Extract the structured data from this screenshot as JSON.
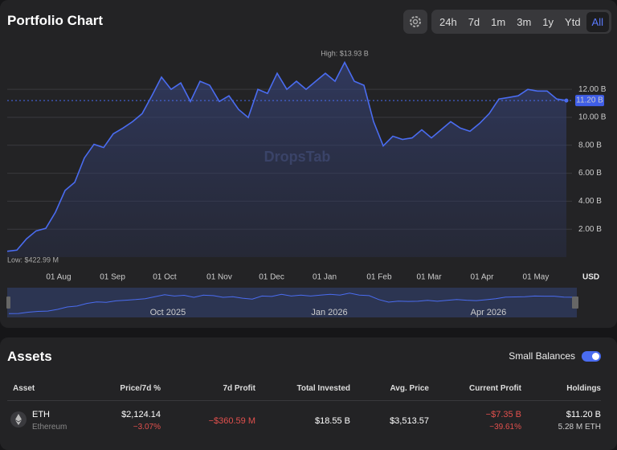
{
  "header": {
    "title": "Portfolio Chart",
    "ranges": [
      "24h",
      "7d",
      "1m",
      "3m",
      "1y",
      "Ytd",
      "All"
    ],
    "active_range": 6
  },
  "chart_data": {
    "type": "line",
    "color": "#4a6cf0",
    "watermark": "DropsTab",
    "values": [
      0.42,
      0.5,
      1.31,
      1.88,
      2.06,
      3.21,
      4.77,
      5.35,
      7.09,
      8.07,
      7.84,
      8.82,
      9.23,
      9.69,
      10.27,
      11.54,
      12.87,
      12.0,
      12.46,
      11.13,
      12.58,
      12.29,
      11.13,
      11.54,
      10.56,
      9.98,
      12.0,
      11.71,
      13.15,
      12.0,
      12.58,
      12.0,
      12.58,
      13.15,
      12.58,
      13.93,
      12.58,
      12.29,
      9.69,
      7.95,
      8.65,
      8.42,
      8.53,
      9.11,
      8.53,
      9.11,
      9.69,
      9.23,
      9.0,
      9.57,
      10.27,
      11.31,
      11.42,
      11.54,
      12.0,
      11.88,
      11.88,
      11.31,
      11.2
    ],
    "xlim": [
      0,
      58
    ],
    "xticks": [
      {
        "value": 5.33,
        "label": "01 Aug"
      },
      {
        "value": 10.92,
        "label": "01 Sep"
      },
      {
        "value": 16.33,
        "label": "01 Oct"
      },
      {
        "value": 22,
        "label": "01 Nov"
      },
      {
        "value": 27.42,
        "label": "01 Dec"
      },
      {
        "value": 32.92,
        "label": "01 Jan"
      },
      {
        "value": 38.58,
        "label": "01 Feb"
      },
      {
        "value": 43.75,
        "label": "01 Mar"
      },
      {
        "value": 49.25,
        "label": "01 Apr"
      },
      {
        "value": 54.83,
        "label": "01 May"
      }
    ],
    "ylim": [
      0,
      15.4
    ],
    "yticks": [
      {
        "value": 2,
        "label": "2.00 B"
      },
      {
        "value": 4,
        "label": "4.00 B"
      },
      {
        "value": 6,
        "label": "6.00 B"
      },
      {
        "value": 8,
        "label": "8.00 B"
      },
      {
        "value": 10,
        "label": "10.00 B"
      },
      {
        "value": 12,
        "label": "12.00 B"
      }
    ],
    "y_unit": "USD",
    "high": {
      "index": 35,
      "label": "High: $13.93 B"
    },
    "low": {
      "index": 0,
      "label": "Low: $422.99 M"
    },
    "current": {
      "value": 11.2,
      "label": "11.20 B"
    },
    "navigator_labels": [
      {
        "value": 16.33,
        "label": "Oct 2025"
      },
      {
        "value": 32.92,
        "label": "Jan 2026"
      },
      {
        "value": 49.25,
        "label": "Apr 2026"
      }
    ]
  },
  "assets": {
    "title": "Assets",
    "toggle_label": "Small Balances",
    "columns": [
      "Asset",
      "Price/7d %",
      "7d Profit",
      "Total Invested",
      "Avg. Price",
      "Current Profit",
      "Holdings"
    ],
    "rows": [
      {
        "symbol": "ETH",
        "name": "Ethereum",
        "price": "$2,124.14",
        "change": "−3.07%",
        "profit7d": "−$360.59 M",
        "invested": "$18.55 B",
        "avg": "$3,513.57",
        "profit": "−$7.35 B",
        "profit_pct": "−39.61%",
        "holdings": "$11.20 B",
        "amount": "5.28 M ETH"
      }
    ]
  }
}
